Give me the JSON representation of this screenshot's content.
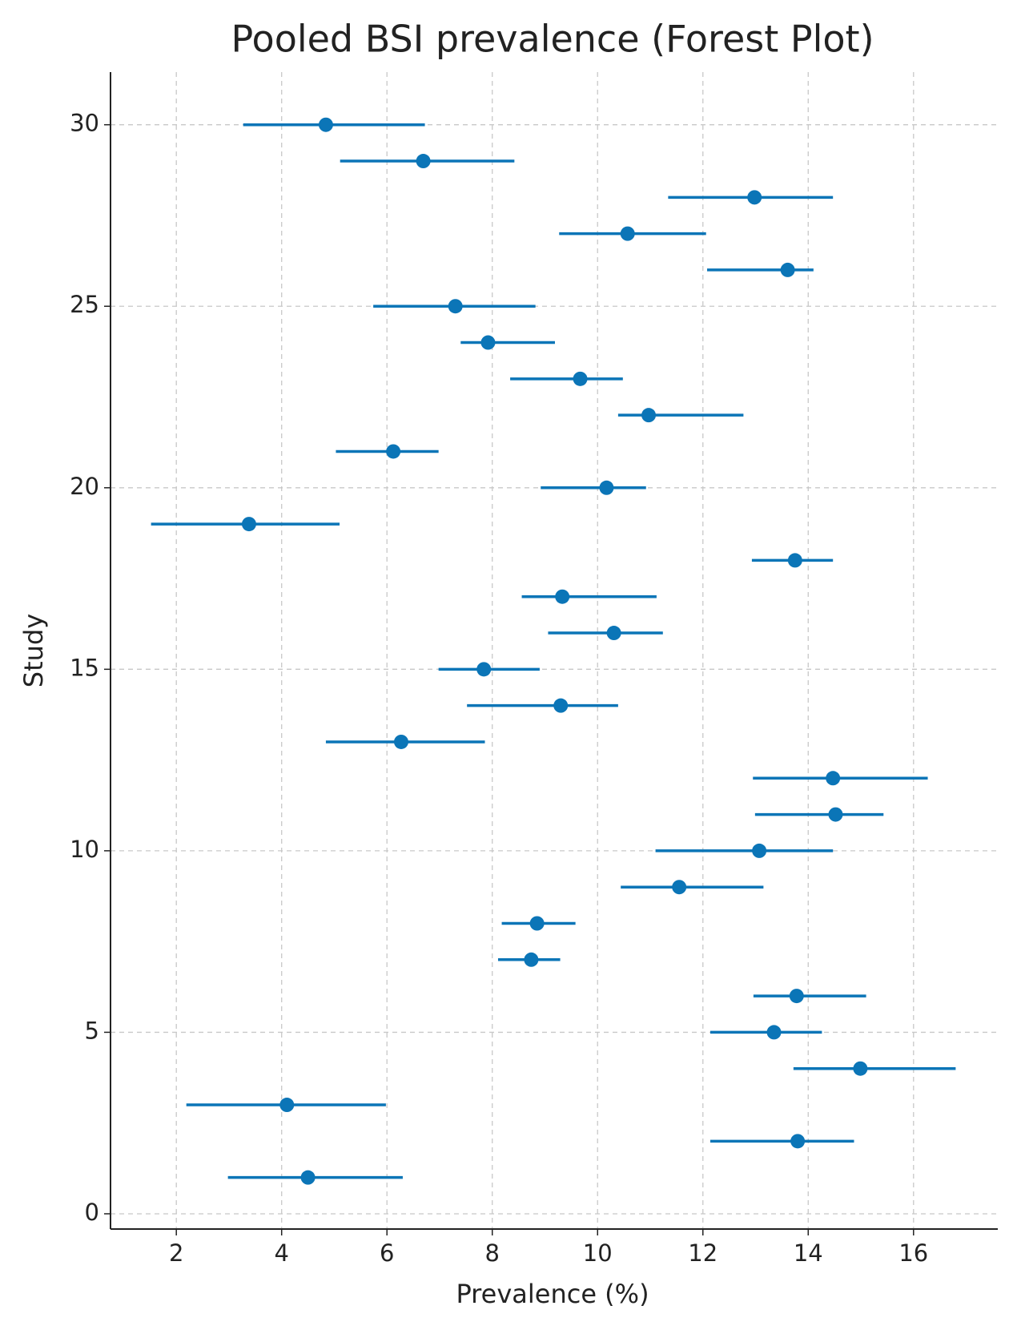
{
  "chart_data": {
    "type": "forest",
    "title": "Pooled BSI prevalence (Forest Plot)",
    "x_label": "Prevalence (%)",
    "y_label": "Study",
    "color": "#0b75b7",
    "study": [
      1,
      2,
      3,
      4,
      5,
      6,
      7,
      8,
      9,
      10,
      11,
      12,
      13,
      14,
      15,
      16,
      17,
      18,
      19,
      20,
      21,
      22,
      23,
      24,
      25,
      26,
      27,
      28,
      29,
      30
    ],
    "prevalence": [
      4.5,
      13.8,
      4.1,
      14.99,
      13.35,
      13.78,
      8.74,
      8.85,
      11.55,
      13.07,
      14.52,
      14.47,
      6.27,
      9.3,
      7.84,
      10.31,
      9.33,
      13.75,
      3.38,
      10.17,
      6.12,
      10.97,
      9.67,
      7.92,
      7.3,
      13.61,
      10.57,
      12.98,
      6.69,
      4.84
    ],
    "ci_lower": [
      2.98,
      12.14,
      2.19,
      13.72,
      12.14,
      12.96,
      8.11,
      8.18,
      10.44,
      11.1,
      12.99,
      12.95,
      4.84,
      7.52,
      6.98,
      9.06,
      8.56,
      12.93,
      1.52,
      8.92,
      5.03,
      10.39,
      8.34,
      7.4,
      5.74,
      12.08,
      9.27,
      11.34,
      5.11,
      3.27
    ],
    "ci_upper": [
      6.3,
      14.87,
      5.98,
      16.8,
      14.26,
      15.1,
      9.29,
      9.58,
      13.15,
      14.47,
      15.43,
      16.27,
      7.86,
      10.39,
      8.9,
      11.24,
      11.12,
      14.47,
      5.1,
      10.92,
      6.98,
      12.77,
      10.48,
      9.19,
      8.82,
      14.1,
      12.06,
      14.47,
      8.42,
      6.72
    ],
    "xlim": [
      0.75,
      17.6
    ],
    "ylim": [
      -0.42,
      31.45
    ],
    "xticks": [
      2,
      4,
      6,
      8,
      10,
      12,
      14,
      16
    ],
    "yticks": [
      0,
      5,
      10,
      15,
      20,
      25,
      30
    ],
    "grid": true
  }
}
